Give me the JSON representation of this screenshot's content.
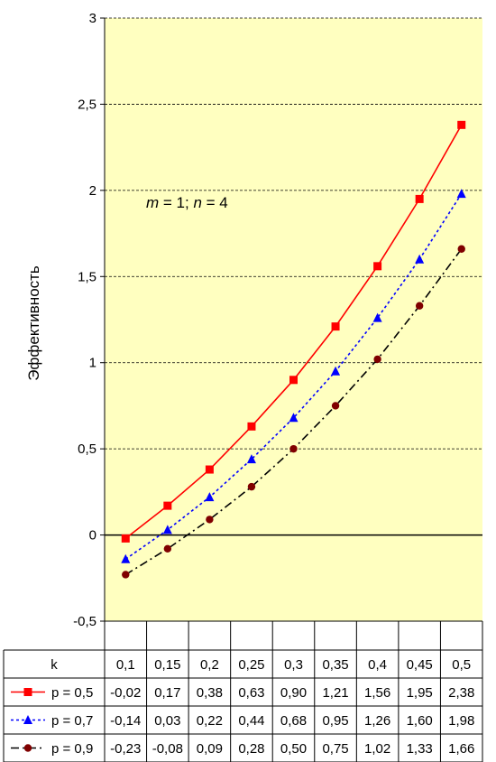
{
  "chart_data": {
    "type": "line",
    "ylabel": "Эффективность",
    "annotation": {
      "m_label": "m",
      "m_text": " = 1; ",
      "n_label": "n",
      "n_text": " = 4"
    },
    "ylim": [
      -0.5,
      3
    ],
    "yticks": [
      -0.5,
      0,
      0.5,
      1,
      1.5,
      2,
      2.5,
      3
    ],
    "ytick_labels": [
      "-0,5",
      "0",
      "0,5",
      "1",
      "1,5",
      "2",
      "2,5",
      "3"
    ],
    "grid": "horizontal-dashed",
    "plot_background": "#ffffc0",
    "table_header": "k",
    "categories": [
      "0,1",
      "0,15",
      "0,2",
      "0,25",
      "0,3",
      "0,35",
      "0,4",
      "0,45",
      "0,5"
    ],
    "series": [
      {
        "name": "p = 0,5",
        "color": "#ff0000",
        "marker": "square",
        "line": "solid",
        "values": [
          -0.02,
          0.17,
          0.38,
          0.63,
          0.9,
          1.21,
          1.56,
          1.95,
          2.38
        ],
        "labels": [
          "-0,02",
          "0,17",
          "0,38",
          "0,63",
          "0,90",
          "1,21",
          "1,56",
          "1,95",
          "2,38"
        ]
      },
      {
        "name": "p = 0,7",
        "color": "#0000ff",
        "marker": "triangle",
        "line": "dotted",
        "values": [
          -0.14,
          0.03,
          0.22,
          0.44,
          0.68,
          0.95,
          1.26,
          1.6,
          1.98
        ],
        "labels": [
          "-0,14",
          "0,03",
          "0,22",
          "0,44",
          "0,68",
          "0,95",
          "1,26",
          "1,60",
          "1,98"
        ]
      },
      {
        "name": "p = 0,9",
        "color": "#800000",
        "marker": "circle",
        "line": "dashdot",
        "values": [
          -0.23,
          -0.08,
          0.09,
          0.28,
          0.5,
          0.75,
          1.02,
          1.33,
          1.66
        ],
        "labels": [
          "-0,23",
          "-0,08",
          "0,09",
          "0,28",
          "0,50",
          "0,75",
          "1,02",
          "1,33",
          "1,66"
        ]
      }
    ]
  }
}
